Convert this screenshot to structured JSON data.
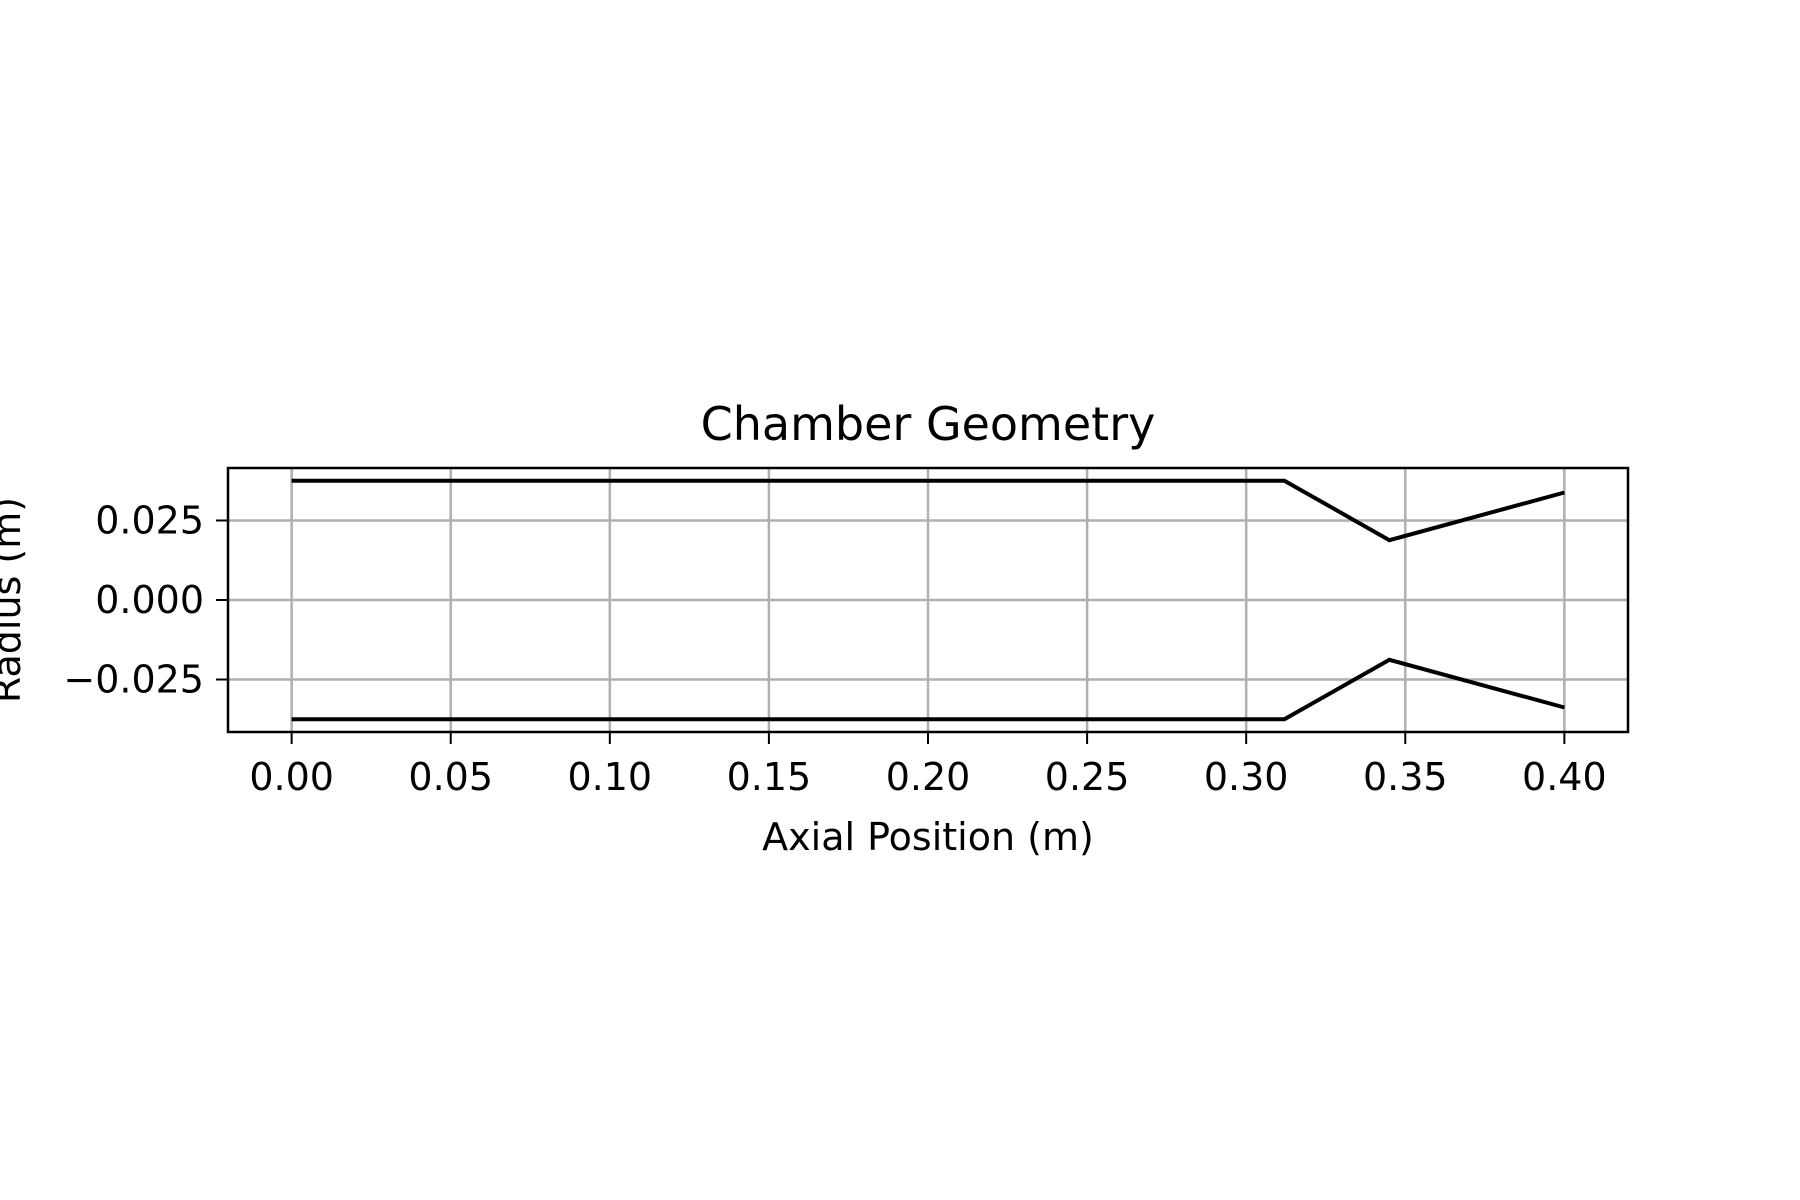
{
  "chart_data": {
    "type": "line",
    "title": "Chamber Geometry",
    "xlabel": "Axial Position (m)",
    "ylabel": "Radius (m)",
    "xlim": [
      -0.02,
      0.42
    ],
    "ylim": [
      -0.0415,
      0.0415
    ],
    "x_ticks": [
      0.0,
      0.05,
      0.1,
      0.15,
      0.2,
      0.25,
      0.3,
      0.35,
      0.4
    ],
    "x_tick_labels": [
      "0.00",
      "0.05",
      "0.10",
      "0.15",
      "0.20",
      "0.25",
      "0.30",
      "0.35",
      "0.40"
    ],
    "y_ticks": [
      0.025,
      0.0,
      -0.025
    ],
    "y_tick_labels": [
      "0.025",
      "0.000",
      "−0.025"
    ],
    "grid": true,
    "line_color": "#000000",
    "grid_color": "#b0b0b0",
    "series": [
      {
        "x": [
          0.0,
          0.312,
          0.345,
          0.4
        ],
        "y": [
          0.0375,
          0.0375,
          0.0188,
          0.0338
        ]
      },
      {
        "x": [
          0.0,
          0.312,
          0.345,
          0.4
        ],
        "y": [
          -0.0375,
          -0.0375,
          -0.0188,
          -0.0338
        ]
      }
    ]
  }
}
